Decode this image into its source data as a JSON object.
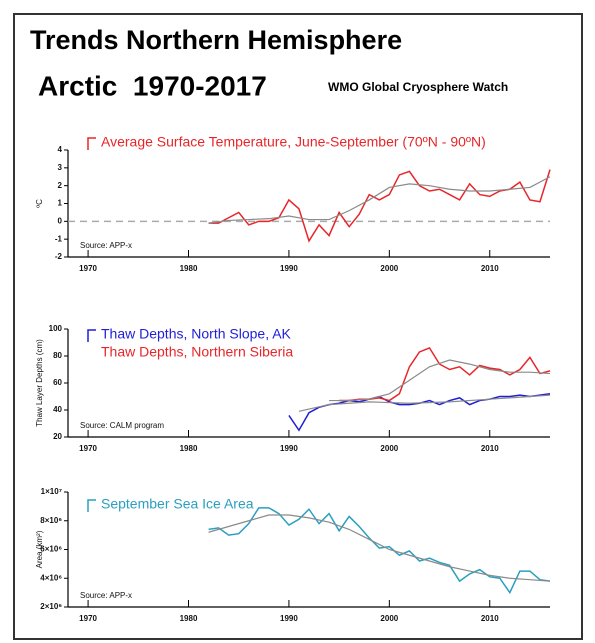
{
  "header": {
    "title": "Trends Northern Hemisphere",
    "subtitle": "Arctic  1970-2017",
    "credit": "WMO Global Cryosphere Watch"
  },
  "chart_data": [
    {
      "type": "line",
      "ylabel": "ºC",
      "annotation": "Source: APP-x",
      "xlim": [
        1968,
        2016
      ],
      "xticks": [
        1970,
        1980,
        1990,
        2000,
        2010
      ],
      "ylim": [
        -2,
        4
      ],
      "yticks": [
        -2,
        -1,
        0,
        1,
        2,
        3,
        4
      ],
      "reference_line": 0,
      "series": [
        {
          "name": "Average Surface Temperature, June-September (70ºN - 90ºN)",
          "color": "#e8262a",
          "x": [
            1982,
            1983,
            1984,
            1985,
            1986,
            1987,
            1988,
            1989,
            1990,
            1991,
            1992,
            1993,
            1994,
            1995,
            1996,
            1997,
            1998,
            1999,
            2000,
            2001,
            2002,
            2003,
            2004,
            2005,
            2006,
            2007,
            2008,
            2009,
            2010,
            2011,
            2012,
            2013,
            2014,
            2015,
            2016
          ],
          "values": [
            -0.1,
            -0.1,
            0.2,
            0.5,
            -0.2,
            0.0,
            0.0,
            0.2,
            1.2,
            0.7,
            -1.1,
            -0.2,
            -0.8,
            0.5,
            -0.3,
            0.4,
            1.5,
            1.2,
            1.5,
            2.6,
            2.8,
            2.0,
            1.7,
            1.8,
            1.5,
            1.2,
            2.1,
            1.5,
            1.4,
            1.7,
            1.8,
            2.2,
            1.2,
            1.1,
            2.9
          ]
        },
        {
          "color": "#8a8a8a",
          "x": [
            1982,
            1984,
            1986,
            1988,
            1990,
            1992,
            1994,
            1996,
            1998,
            2000,
            2002,
            2004,
            2006,
            2008,
            2010,
            2012,
            2014,
            2016
          ],
          "values": [
            -0.1,
            0.05,
            0.1,
            0.15,
            0.3,
            0.1,
            0.1,
            0.6,
            1.2,
            1.9,
            2.1,
            2.0,
            1.8,
            1.7,
            1.7,
            1.8,
            1.9,
            2.5
          ]
        }
      ]
    },
    {
      "type": "line",
      "ylabel": "Thaw Layer Depths (cm)",
      "annotation": "Source: CALM program",
      "xlim": [
        1968,
        2016
      ],
      "xticks": [
        1970,
        1980,
        1990,
        2000,
        2010
      ],
      "ylim": [
        20,
        100
      ],
      "yticks": [
        20,
        40,
        60,
        80,
        100
      ],
      "series": [
        {
          "name": "Thaw Depths, North Slope, AK",
          "color": "#1f1fd8",
          "x": [
            1990,
            1991,
            1992,
            1993,
            1994,
            1995,
            1996,
            1997,
            1998,
            1999,
            2000,
            2001,
            2002,
            2003,
            2004,
            2005,
            2006,
            2007,
            2008,
            2009,
            2010,
            2011,
            2012,
            2013,
            2014,
            2015,
            2016
          ],
          "values": [
            36,
            25,
            38,
            42,
            44,
            45,
            47,
            46,
            48,
            50,
            46,
            44,
            44,
            45,
            47,
            44,
            47,
            49,
            44,
            47,
            48,
            50,
            50,
            51,
            50,
            51,
            52
          ]
        },
        {
          "name": "Thaw Depths, Northern Siberia",
          "color": "#e8262a",
          "x": [
            1995,
            1996,
            1997,
            1998,
            1999,
            2000,
            2001,
            2002,
            2003,
            2004,
            2005,
            2006,
            2007,
            2008,
            2009,
            2010,
            2011,
            2012,
            2013,
            2014,
            2015,
            2016
          ],
          "values": [
            47,
            47,
            48,
            48,
            49,
            47,
            52,
            72,
            83,
            86,
            74,
            70,
            72,
            66,
            73,
            71,
            70,
            66,
            70,
            79,
            67,
            69
          ]
        },
        {
          "color": "#8a8a8a",
          "x": [
            1994,
            1996,
            1998,
            2000,
            2002,
            2004,
            2006,
            2008,
            2010,
            2012,
            2014,
            2016
          ],
          "values": [
            47,
            47,
            48,
            52,
            62,
            72,
            77,
            74,
            70,
            68,
            68,
            67
          ]
        },
        {
          "color": "#8a8a8a",
          "x": [
            1991,
            1994,
            1998,
            2002,
            2006,
            2010,
            2014,
            2016
          ],
          "values": [
            39,
            44,
            46,
            45,
            46,
            48,
            50,
            51
          ]
        }
      ]
    },
    {
      "type": "line",
      "ylabel": "Area (km²)",
      "annotation": "Source: APP-x",
      "xlim": [
        1968,
        2016
      ],
      "xticks": [
        1970,
        1980,
        1990,
        2000,
        2010
      ],
      "ylim": [
        2000000,
        10000000
      ],
      "yticks": [
        {
          "value": 2000000,
          "label": "2×10⁶"
        },
        {
          "value": 4000000,
          "label": "4×10⁶"
        },
        {
          "value": 6000000,
          "label": "6×10⁶"
        },
        {
          "value": 8000000,
          "label": "8×10⁶"
        },
        {
          "value": 10000000,
          "label": "1×10⁷"
        }
      ],
      "series": [
        {
          "name": "September Sea Ice Area",
          "color": "#2a9fc0",
          "x": [
            1982,
            1983,
            1984,
            1985,
            1986,
            1987,
            1988,
            1989,
            1990,
            1991,
            1992,
            1993,
            1994,
            1995,
            1996,
            1997,
            1998,
            1999,
            2000,
            2001,
            2002,
            2003,
            2004,
            2005,
            2006,
            2007,
            2008,
            2009,
            2010,
            2011,
            2012,
            2013,
            2014,
            2015,
            2016
          ],
          "values": [
            7400000,
            7500000,
            7000000,
            7100000,
            7800000,
            8900000,
            8900000,
            8500000,
            7700000,
            8100000,
            8800000,
            7800000,
            8500000,
            7300000,
            8300000,
            7600000,
            6800000,
            6100000,
            6200000,
            5600000,
            5900000,
            5200000,
            5400000,
            5100000,
            4900000,
            3800000,
            4300000,
            4600000,
            4100000,
            4000000,
            3000000,
            4500000,
            4500000,
            3900000,
            3800000
          ]
        },
        {
          "color": "#8a8a8a",
          "x": [
            1982,
            1984,
            1986,
            1988,
            1990,
            1992,
            1994,
            1996,
            1998,
            2000,
            2002,
            2004,
            2006,
            2008,
            2010,
            2012,
            2014,
            2016
          ],
          "values": [
            7200000,
            7600000,
            8000000,
            8400000,
            8400000,
            8200000,
            7900000,
            7400000,
            6700000,
            6000000,
            5600000,
            5200000,
            4800000,
            4500000,
            4200000,
            4000000,
            3900000,
            3800000
          ]
        }
      ]
    }
  ]
}
